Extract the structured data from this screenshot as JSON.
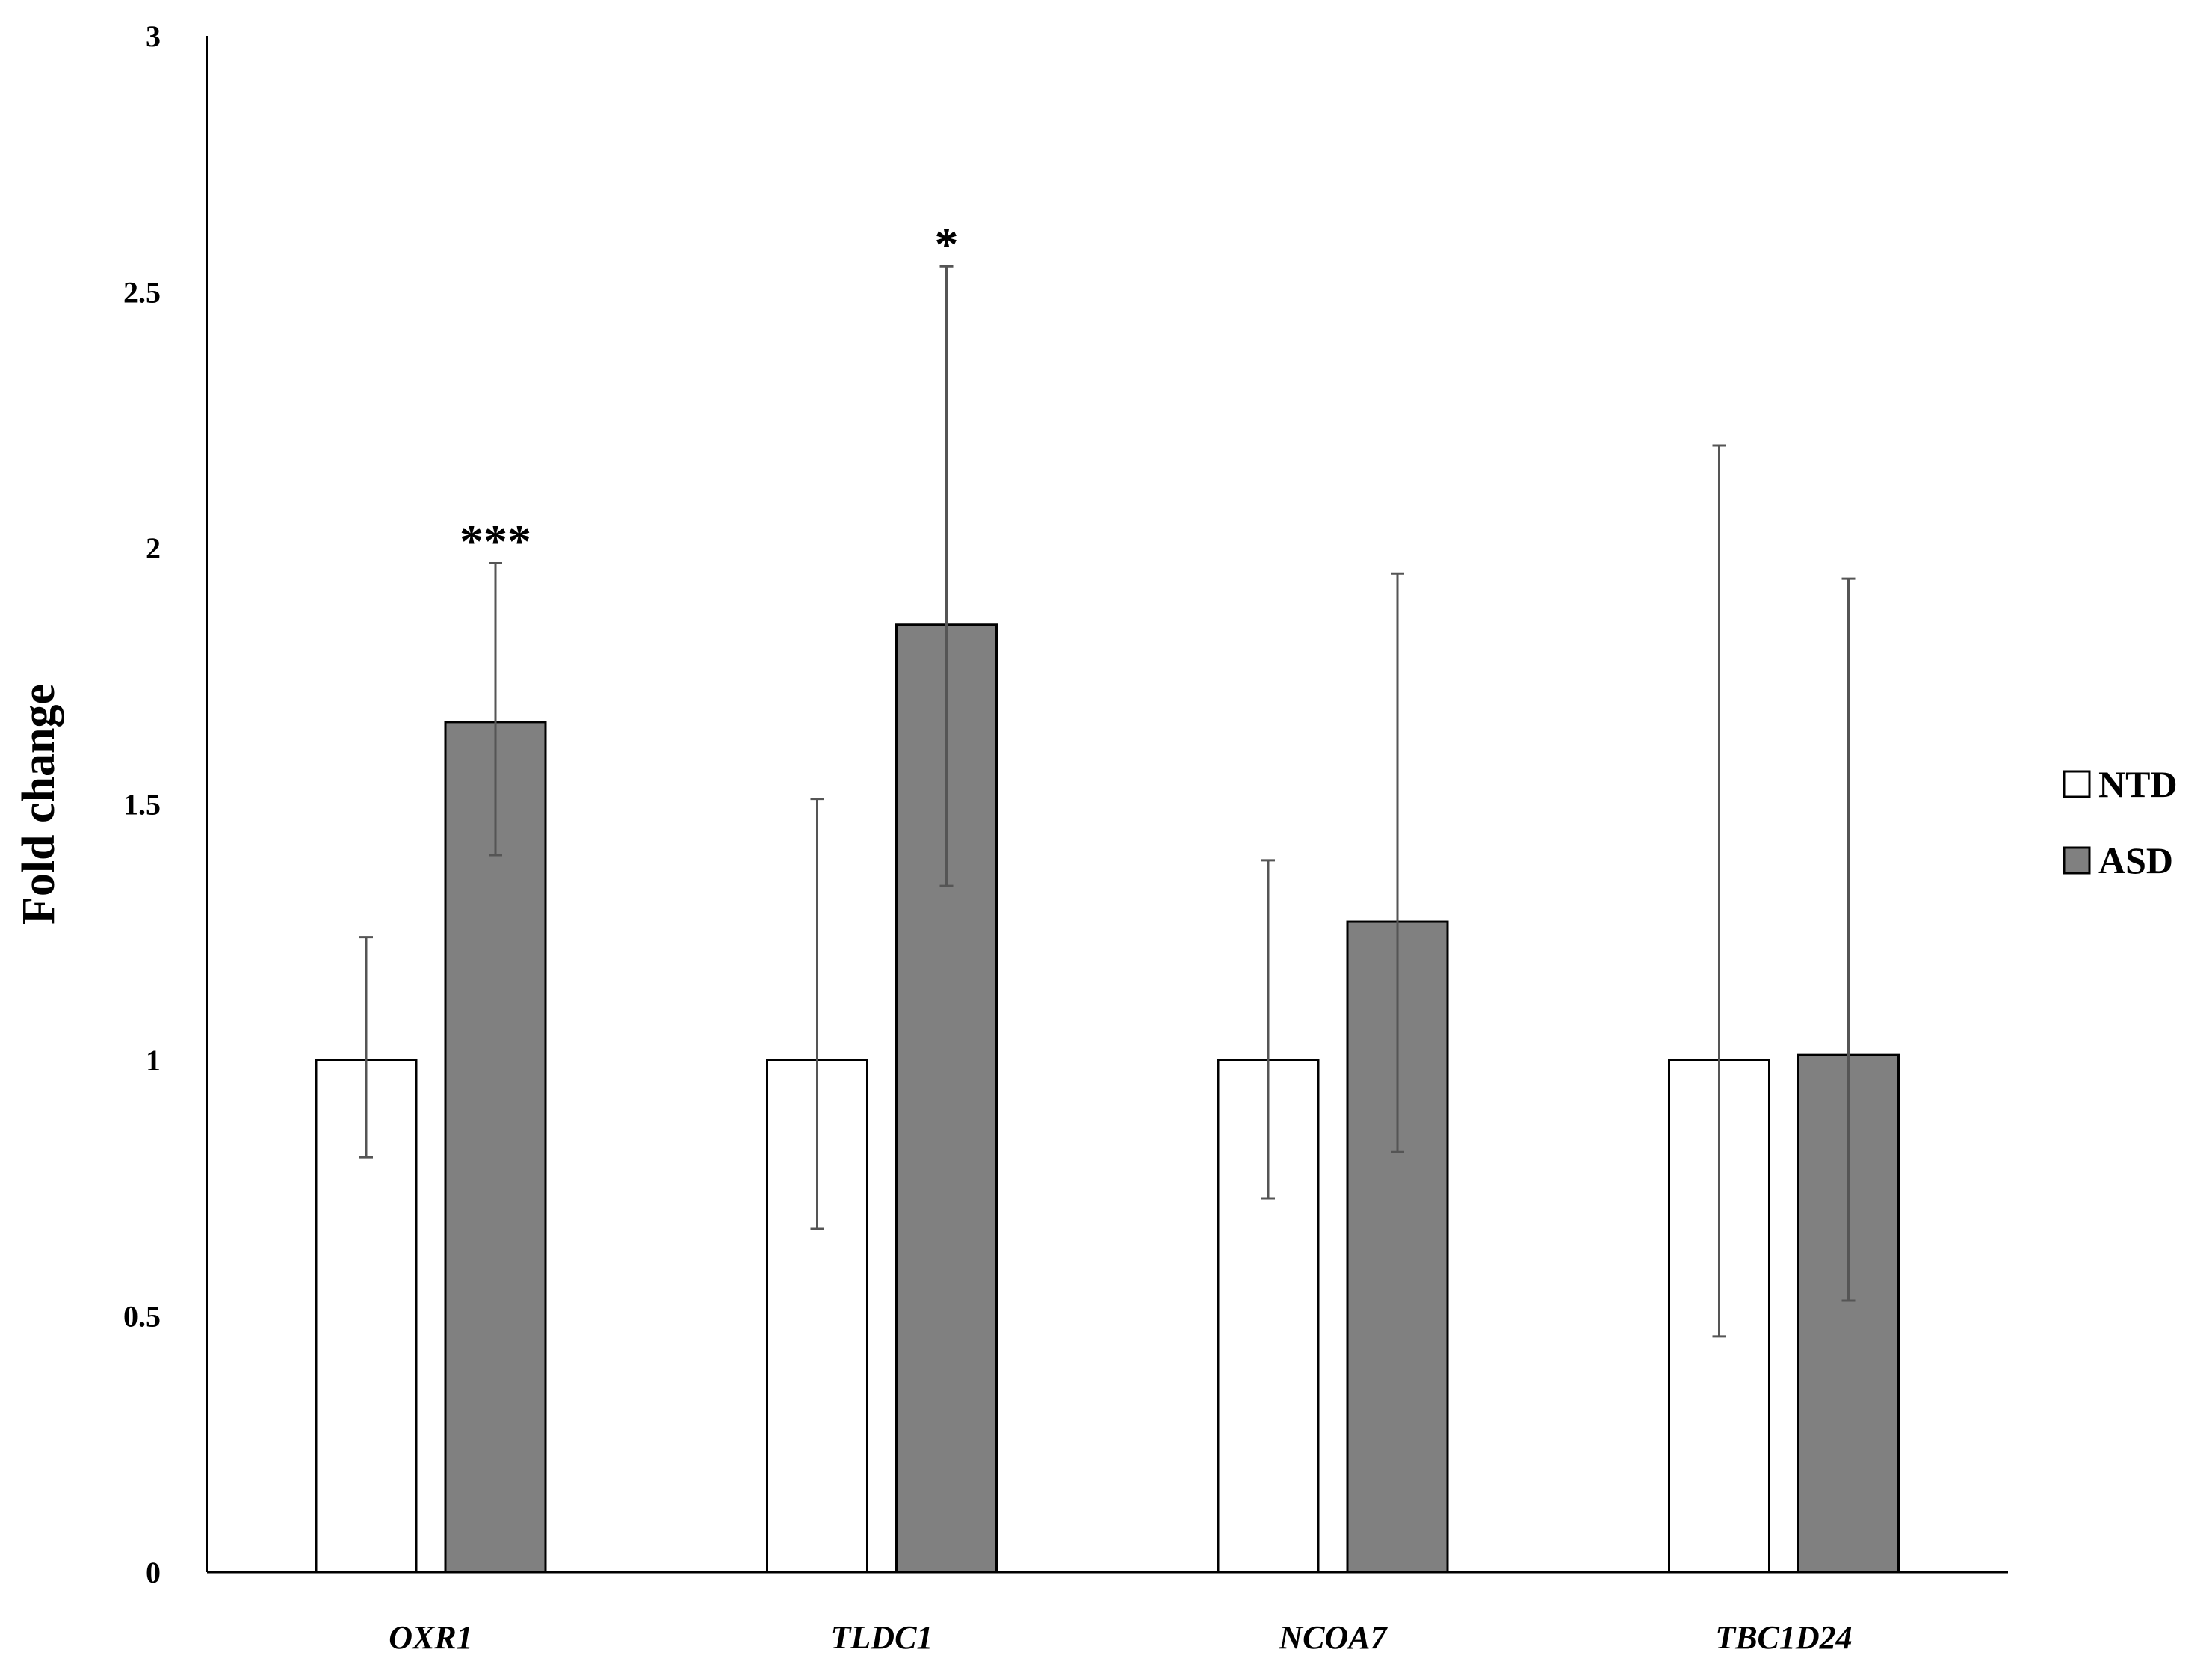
{
  "chart_data": {
    "type": "bar",
    "title": "",
    "xlabel": "",
    "ylabel": "Fold change",
    "ylim": [
      0,
      3
    ],
    "yticks": [
      "0",
      "0.5",
      "1",
      "1.5",
      "2",
      "2.5",
      "3"
    ],
    "categories": [
      "OXR1",
      "TLDC1",
      "NCOA7",
      "TBC1D24"
    ],
    "series": [
      {
        "name": "NTD",
        "color": "#ffffff",
        "values": [
          1.0,
          1.0,
          1.0,
          1.0
        ],
        "error_low": [
          0.81,
          0.67,
          0.73,
          0.46
        ],
        "error_high": [
          1.24,
          1.51,
          1.39,
          2.2
        ]
      },
      {
        "name": "ASD",
        "color": "#808080",
        "values": [
          1.66,
          1.85,
          1.27,
          1.01
        ],
        "error_low": [
          1.4,
          1.34,
          0.82,
          0.53
        ],
        "error_high": [
          1.97,
          2.55,
          1.95,
          1.94
        ]
      }
    ],
    "annotations": [
      {
        "category": "OXR1",
        "series": "ASD",
        "text": "***"
      },
      {
        "category": "TLDC1",
        "series": "ASD",
        "text": "*"
      }
    ],
    "legend_position": "right",
    "grid": false
  }
}
